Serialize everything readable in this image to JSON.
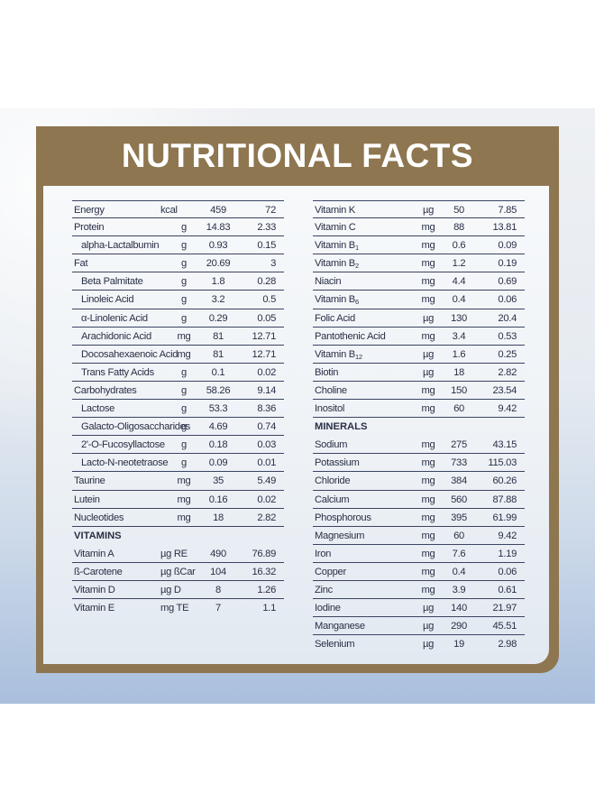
{
  "title": "NUTRITIONAL FACTS",
  "left_rows": [
    {
      "name": "Energy",
      "unit": "kcal",
      "v1": "459",
      "v2": "72"
    },
    {
      "name": "Protein",
      "unit": "g",
      "v1": "14.83",
      "v2": "2.33"
    },
    {
      "name": "alpha-Lactalbumin",
      "unit": "g",
      "v1": "0.93",
      "v2": "0.15",
      "indent": true
    },
    {
      "name": "Fat",
      "unit": "g",
      "v1": "20.69",
      "v2": "3"
    },
    {
      "name": "Beta Palmitate",
      "unit": "g",
      "v1": "1.8",
      "v2": "0.28",
      "indent": true
    },
    {
      "name": "Linoleic Acid",
      "unit": "g",
      "v1": "3.2",
      "v2": "0.5",
      "indent": true
    },
    {
      "name": "α-Linolenic Acid",
      "unit": "g",
      "v1": "0.29",
      "v2": "0.05",
      "indent": true
    },
    {
      "name": "Arachidonic Acid",
      "unit": "mg",
      "v1": "81",
      "v2": "12.71",
      "indent": true
    },
    {
      "name": "Docosahexaenoic Acid",
      "unit": "mg",
      "v1": "81",
      "v2": "12.71",
      "indent": true
    },
    {
      "name": "Trans Fatty Acids",
      "unit": "g",
      "v1": "0.1",
      "v2": "0.02",
      "indent": true
    },
    {
      "name": "Carbohydrates",
      "unit": "g",
      "v1": "58.26",
      "v2": "9.14"
    },
    {
      "name": "Lactose",
      "unit": "g",
      "v1": "53.3",
      "v2": "8.36",
      "indent": true
    },
    {
      "name": "Galacto-Oligosaccharides",
      "unit": "g",
      "v1": "4.69",
      "v2": "0.74",
      "indent": true
    },
    {
      "name": "2'-O-Fucosyllactose",
      "unit": "g",
      "v1": "0.18",
      "v2": "0.03",
      "indent": true
    },
    {
      "name": "Lacto-N-neotetraose",
      "unit": "g",
      "v1": "0.09",
      "v2": "0.01",
      "indent": true
    },
    {
      "name": "Taurine",
      "unit": "mg",
      "v1": "35",
      "v2": "5.49"
    },
    {
      "name": "Lutein",
      "unit": "mg",
      "v1": "0.16",
      "v2": "0.02"
    },
    {
      "name": "Nucleotides",
      "unit": "mg",
      "v1": "18",
      "v2": "2.82"
    },
    {
      "name": "VITAMINS",
      "section": true
    },
    {
      "name": "Vitamin A",
      "unit": "µg RE",
      "v1": "490",
      "v2": "76.89"
    },
    {
      "name": "ß-Carotene",
      "unit": "µg ßCar",
      "v1": "104",
      "v2": "16.32"
    },
    {
      "name": "Vitamin D",
      "unit": "µg D",
      "v1": "8",
      "v2": "1.26"
    },
    {
      "name": "Vitamin E",
      "unit": "mg TE",
      "v1": "7",
      "v2": "1.1",
      "nolines": true
    }
  ],
  "right_rows": [
    {
      "name": "Vitamin K",
      "unit": "µg",
      "v1": "50",
      "v2": "7.85"
    },
    {
      "name": "Vitamin C",
      "unit": "mg",
      "v1": "88",
      "v2": "13.81"
    },
    {
      "name": "Vitamin B",
      "sub": "1",
      "unit": "mg",
      "v1": "0.6",
      "v2": "0.09"
    },
    {
      "name": "Vitamin B",
      "sub": "2",
      "unit": "mg",
      "v1": "1.2",
      "v2": "0.19"
    },
    {
      "name": "Niacin",
      "unit": "mg",
      "v1": "4.4",
      "v2": "0.69"
    },
    {
      "name": "Vitamin B",
      "sub": "6",
      "unit": "mg",
      "v1": "0.4",
      "v2": "0.06"
    },
    {
      "name": "Folic Acid",
      "unit": "µg",
      "v1": "130",
      "v2": "20.4"
    },
    {
      "name": "Pantothenic Acid",
      "unit": "mg",
      "v1": "3.4",
      "v2": "0.53"
    },
    {
      "name": "Vitamin B",
      "sub": "12",
      "unit": "µg",
      "v1": "1.6",
      "v2": "0.25"
    },
    {
      "name": "Biotin",
      "unit": "µg",
      "v1": "18",
      "v2": "2.82"
    },
    {
      "name": "Choline",
      "unit": "mg",
      "v1": "150",
      "v2": "23.54"
    },
    {
      "name": "Inositol",
      "unit": "mg",
      "v1": "60",
      "v2": "9.42"
    },
    {
      "name": "MINERALS",
      "section": true
    },
    {
      "name": "Sodium",
      "unit": "mg",
      "v1": "275",
      "v2": "43.15"
    },
    {
      "name": "Potassium",
      "unit": "mg",
      "v1": "733",
      "v2": "115.03"
    },
    {
      "name": "Chloride",
      "unit": "mg",
      "v1": "384",
      "v2": "60.26"
    },
    {
      "name": "Calcium",
      "unit": "mg",
      "v1": "560",
      "v2": "87.88"
    },
    {
      "name": "Phosphorous",
      "unit": "mg",
      "v1": "395",
      "v2": "61.99"
    },
    {
      "name": "Magnesium",
      "unit": "mg",
      "v1": "60",
      "v2": "9.42"
    },
    {
      "name": "Iron",
      "unit": "mg",
      "v1": "7.6",
      "v2": "1.19"
    },
    {
      "name": "Copper",
      "unit": "mg",
      "v1": "0.4",
      "v2": "0.06"
    },
    {
      "name": "Zinc",
      "unit": "mg",
      "v1": "3.9",
      "v2": "0.61"
    },
    {
      "name": "Iodine",
      "unit": "µg",
      "v1": "140",
      "v2": "21.97"
    },
    {
      "name": "Manganese",
      "unit": "µg",
      "v1": "290",
      "v2": "45.51"
    },
    {
      "name": "Selenium",
      "unit": "µg",
      "v1": "19",
      "v2": "2.98",
      "nolines": true
    }
  ]
}
